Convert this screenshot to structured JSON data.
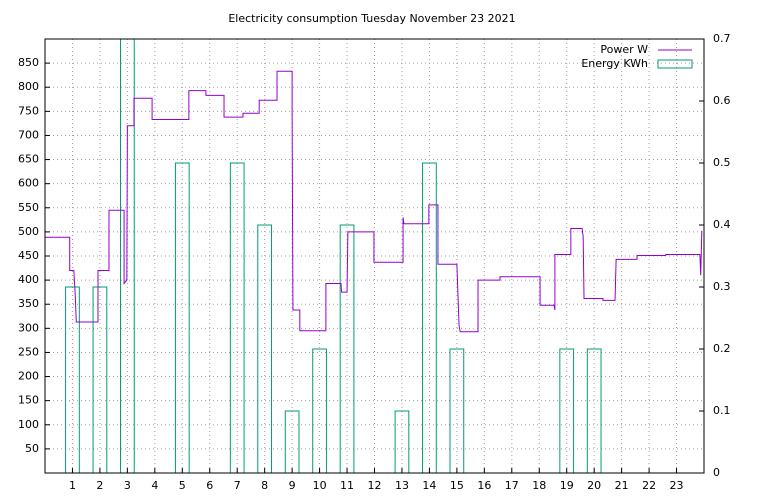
{
  "chart_data": {
    "type": "combo",
    "title": "Electricity consumption Tuesday November 23 2021",
    "xlim": [
      0,
      24
    ],
    "xticks": [
      1,
      2,
      3,
      4,
      5,
      6,
      7,
      8,
      9,
      10,
      11,
      12,
      13,
      14,
      15,
      16,
      17,
      18,
      19,
      20,
      21,
      22,
      23
    ],
    "ylim": [
      0,
      900
    ],
    "yticks": [
      50,
      100,
      150,
      200,
      250,
      300,
      350,
      400,
      450,
      500,
      550,
      600,
      650,
      700,
      750,
      800,
      850
    ],
    "y2lim": [
      0,
      0.7
    ],
    "y2ticks": [
      0,
      0.1,
      0.2,
      0.3,
      0.4,
      0.5,
      0.6,
      0.7
    ],
    "grid": true,
    "legend": "top-right",
    "series": [
      {
        "name": "Power W",
        "type": "line",
        "color": "#9400d3",
        "x": [
          0,
          0.9,
          0.9,
          1.05,
          1.1,
          1.14,
          1.93,
          1.93,
          2.33,
          2.33,
          2.88,
          2.88,
          2.98,
          3.0,
          3.24,
          3.24,
          3.9,
          3.9,
          5.24,
          5.24,
          5.86,
          5.86,
          6.52,
          6.52,
          7.21,
          7.21,
          7.8,
          7.8,
          8.45,
          8.45,
          9.0,
          9.0,
          9.03,
          9.28,
          9.28,
          10.23,
          10.23,
          10.78,
          10.8,
          11.0,
          11.03,
          11.98,
          11.98,
          13.04,
          13.04,
          13.07,
          13.98,
          13.98,
          14.31,
          14.31,
          15.0,
          15.08,
          15.12,
          15.77,
          15.77,
          16.57,
          16.57,
          18.03,
          18.03,
          18.54,
          18.57,
          18.57,
          19.15,
          19.15,
          19.56,
          19.6,
          19.63,
          20.32,
          20.32,
          20.76,
          20.8,
          21.56,
          21.56,
          22.61,
          22.61,
          23.85,
          23.88,
          23.92
        ],
        "values": [
          489,
          489,
          420,
          420,
          370,
          313,
          313,
          420,
          420,
          545,
          545,
          393,
          400,
          720,
          720,
          777,
          777,
          733,
          733,
          793,
          793,
          783,
          783,
          738,
          738,
          746,
          746,
          773,
          773,
          833,
          833,
          737,
          338,
          338,
          295,
          295,
          393,
          393,
          375,
          375,
          500,
          500,
          437,
          437,
          530,
          517,
          517,
          556,
          556,
          433,
          433,
          305,
          293,
          293,
          400,
          400,
          407,
          407,
          348,
          348,
          338,
          453,
          453,
          507,
          507,
          490,
          362,
          362,
          358,
          358,
          443,
          443,
          451,
          451,
          453,
          453,
          410,
          502
        ]
      },
      {
        "name": "Energy KWh",
        "type": "bar",
        "axis": "y2",
        "color": "#009e73",
        "x": [
          1,
          2,
          3,
          5,
          7,
          8,
          9,
          10,
          11,
          13,
          14,
          15,
          19,
          20
        ],
        "values": [
          0.3,
          0.3,
          0.7,
          0.5,
          0.5,
          0.4,
          0.1,
          0.2,
          0.4,
          0.1,
          0.5,
          0.2,
          0.2,
          0.2
        ]
      }
    ]
  }
}
